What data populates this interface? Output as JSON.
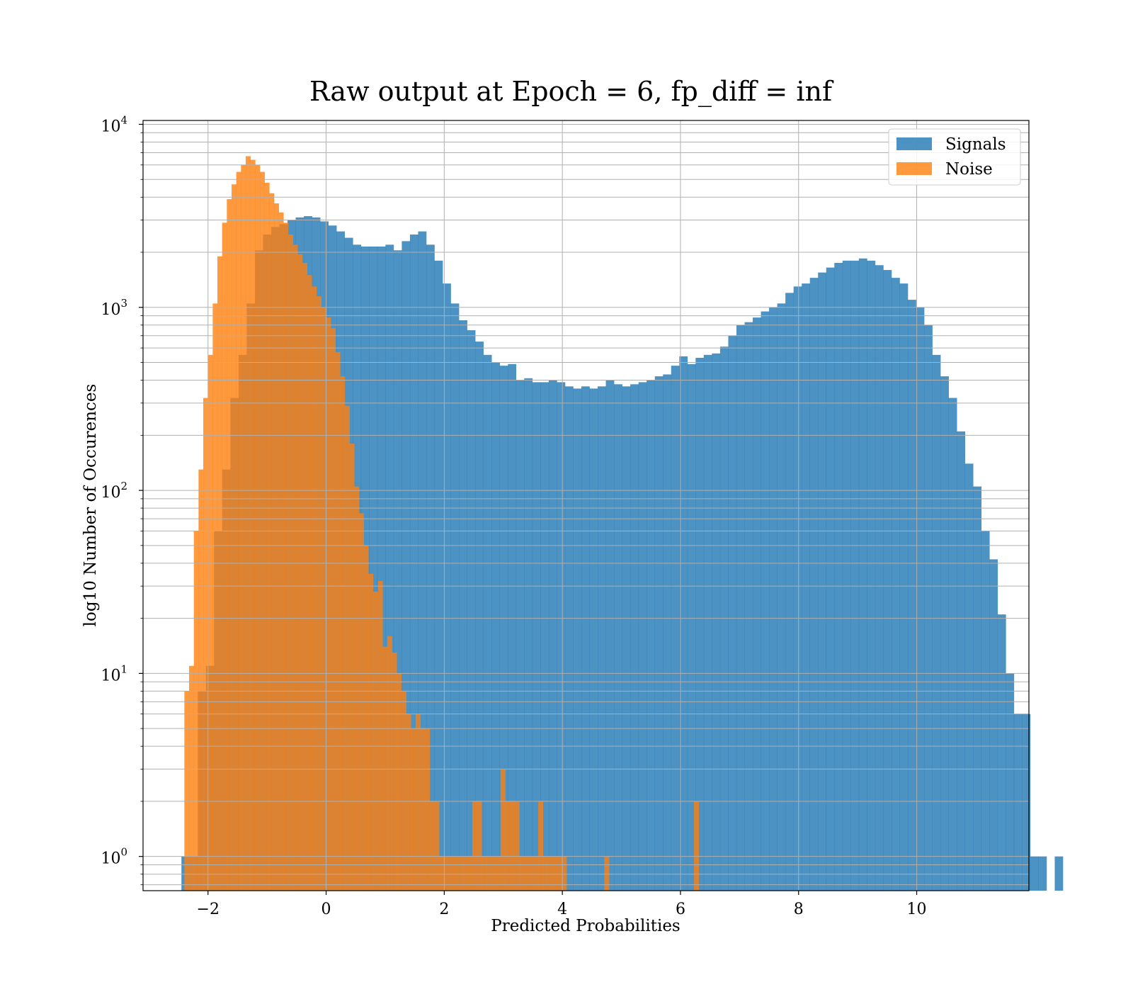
{
  "chart_data": {
    "type": "bar",
    "title": "Raw output at Epoch = 6, fp_diff = inf",
    "xlabel": "Predicted Probabilities",
    "ylabel": "log10 Number of Occurences",
    "xlim": [
      -3.1,
      11.9
    ],
    "ylim": [
      0.65,
      10500
    ],
    "y_scale": "log",
    "grid": true,
    "legend_position": "top-right",
    "x_ticks": [
      {
        "value": -2,
        "label": "−2"
      },
      {
        "value": 0,
        "label": "0"
      },
      {
        "value": 2,
        "label": "2"
      },
      {
        "value": 4,
        "label": "4"
      },
      {
        "value": 6,
        "label": "6"
      },
      {
        "value": 8,
        "label": "8"
      },
      {
        "value": 10,
        "label": "10"
      }
    ],
    "y_ticks": [
      {
        "value": 1,
        "base": "10",
        "exp": "0"
      },
      {
        "value": 10,
        "base": "10",
        "exp": "1"
      },
      {
        "value": 100,
        "base": "10",
        "exp": "2"
      },
      {
        "value": 1000,
        "base": "10",
        "exp": "3"
      },
      {
        "value": 10000,
        "base": "10",
        "exp": "4"
      }
    ],
    "series": [
      {
        "name": "Signals",
        "color": "#1f77b4",
        "opacity": 0.8,
        "bin_start": -2.45,
        "bin_width": 0.1382,
        "values": [
          1,
          1,
          8,
          11,
          60,
          130,
          320,
          550,
          1050,
          2050,
          2500,
          2750,
          2850,
          3000,
          3100,
          3150,
          3100,
          2950,
          2800,
          2600,
          2400,
          2200,
          2150,
          2150,
          2150,
          2200,
          2050,
          2300,
          2500,
          2600,
          2200,
          1800,
          1350,
          1050,
          850,
          750,
          650,
          550,
          500,
          480,
          490,
          400,
          410,
          390,
          390,
          400,
          390,
          370,
          360,
          370,
          360,
          370,
          400,
          380,
          370,
          380,
          390,
          400,
          420,
          430,
          480,
          540,
          490,
          530,
          550,
          560,
          610,
          700,
          800,
          830,
          880,
          950,
          1000,
          1050,
          1200,
          1300,
          1350,
          1450,
          1550,
          1650,
          1750,
          1800,
          1800,
          1850,
          1800,
          1700,
          1600,
          1450,
          1350,
          1100,
          1000,
          800,
          550,
          420,
          320,
          210,
          140,
          105,
          60,
          42,
          21,
          10,
          6,
          6,
          1,
          1,
          0,
          1
        ]
      },
      {
        "name": "Noise",
        "color": "#ff7f0e",
        "opacity": 0.8,
        "bin_start": -2.4,
        "bin_width": 0.0799,
        "values": [
          8,
          11,
          60,
          130,
          320,
          550,
          1050,
          1900,
          2900,
          3900,
          4700,
          5500,
          6000,
          6700,
          6400,
          6000,
          5500,
          4800,
          4200,
          3700,
          3300,
          2900,
          2500,
          2200,
          1950,
          1750,
          1500,
          1300,
          1150,
          1000,
          880,
          770,
          570,
          420,
          290,
          180,
          105,
          75,
          50,
          35,
          28,
          32,
          14,
          16,
          13,
          10,
          8,
          6,
          5,
          6,
          5,
          5,
          2,
          2,
          1,
          1,
          1,
          1,
          1,
          1,
          1,
          2,
          2,
          1,
          1,
          1,
          1,
          3,
          2,
          2,
          2,
          1,
          1,
          1,
          1,
          2,
          1,
          1,
          1,
          1,
          1,
          0,
          0,
          0,
          0,
          0,
          0,
          0,
          0,
          1,
          0,
          0,
          0,
          0,
          0,
          0,
          0,
          0,
          0,
          0,
          0,
          0,
          0,
          0,
          0,
          0,
          0,
          0,
          2
        ]
      }
    ]
  }
}
